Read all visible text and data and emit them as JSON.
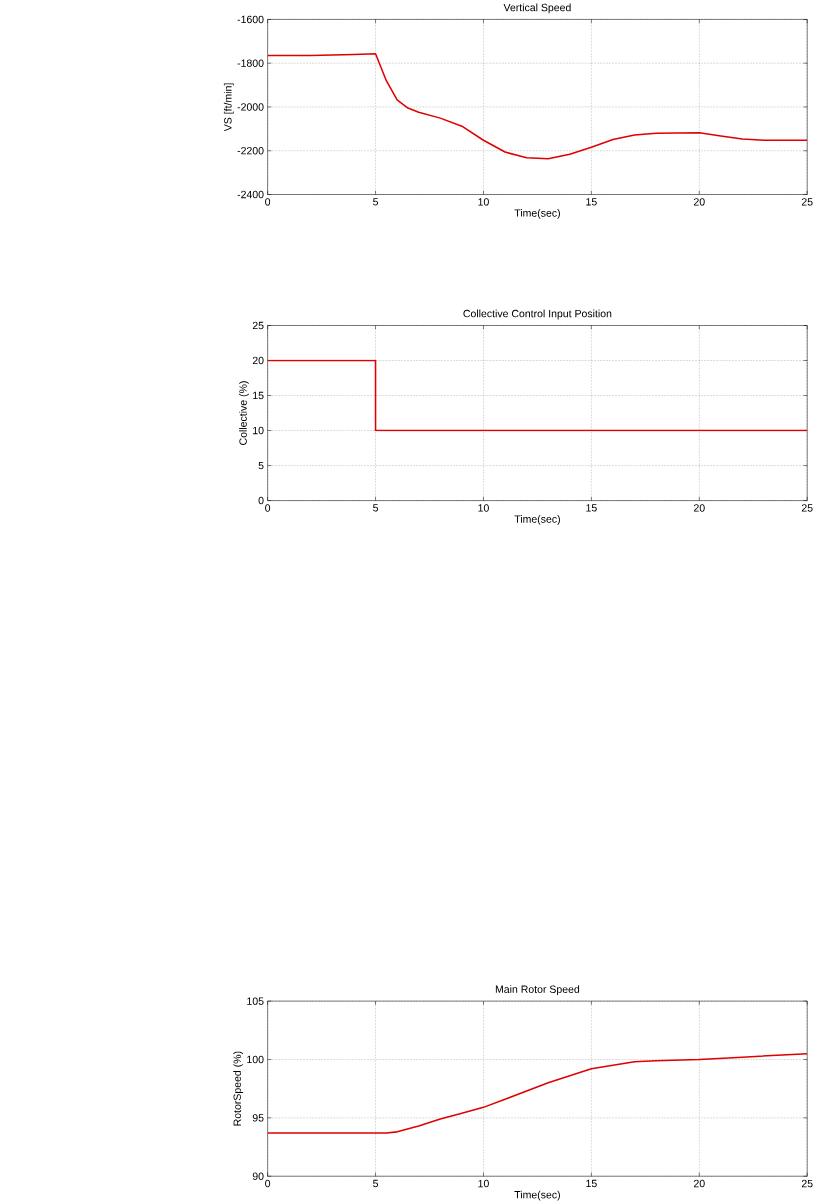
{
  "chart_data": [
    {
      "type": "line",
      "title": "Vertical Speed",
      "xlabel": "Time(sec)",
      "ylabel": "VS [ft/min]",
      "color": "#e00000",
      "grid": true,
      "x": [
        0,
        2,
        4,
        5,
        5.5,
        6,
        6.5,
        7,
        8,
        9,
        10,
        11,
        12,
        13,
        14,
        15,
        16,
        17,
        18,
        20,
        21,
        22,
        23,
        25
      ],
      "values": [
        -1765,
        -1765,
        -1760,
        -1757,
        -1880,
        -1968,
        -2005,
        -2024,
        -2051,
        -2088,
        -2152,
        -2206,
        -2232,
        -2237,
        -2216,
        -2184,
        -2149,
        -2128,
        -2120,
        -2118,
        -2133,
        -2146,
        -2152,
        -2152
      ],
      "xlim": [
        0,
        25
      ],
      "ylim": [
        -2400,
        -1600
      ],
      "xticks": [
        0,
        5,
        10,
        15,
        20,
        25
      ],
      "yticks": [
        -2400,
        -2200,
        -2000,
        -1800,
        -1600
      ]
    },
    {
      "type": "line",
      "title": "Collective Control Input Position",
      "xlabel": "Time(sec)",
      "ylabel": "Collective (%)",
      "color": "#e00000",
      "grid": true,
      "x": [
        0,
        5,
        5,
        25
      ],
      "values": [
        20,
        20,
        10,
        10
      ],
      "xlim": [
        0,
        25
      ],
      "ylim": [
        0,
        25
      ],
      "xticks": [
        0,
        5,
        10,
        15,
        20,
        25
      ],
      "yticks": [
        0,
        5,
        10,
        15,
        20,
        25
      ]
    },
    {
      "type": "line",
      "title": "Main Rotor Speed",
      "xlabel": "Time(sec)",
      "ylabel": "RotorSpeed (%)",
      "color": "#e00000",
      "grid": true,
      "x": [
        0,
        2,
        4,
        5,
        5.5,
        6,
        7,
        8,
        9,
        10,
        11,
        12,
        13,
        14,
        15,
        16,
        17,
        18,
        20,
        22,
        25
      ],
      "values": [
        93.7,
        93.7,
        93.7,
        93.7,
        93.7,
        93.8,
        94.3,
        94.9,
        95.4,
        95.9,
        96.6,
        97.3,
        98.0,
        98.6,
        99.2,
        99.5,
        99.8,
        99.9,
        100.0,
        100.2,
        100.5
      ],
      "xlim": [
        0,
        25
      ],
      "ylim": [
        90,
        105
      ],
      "xticks": [
        0,
        5,
        10,
        15,
        20,
        25
      ],
      "yticks": [
        90,
        95,
        100,
        105
      ]
    }
  ]
}
